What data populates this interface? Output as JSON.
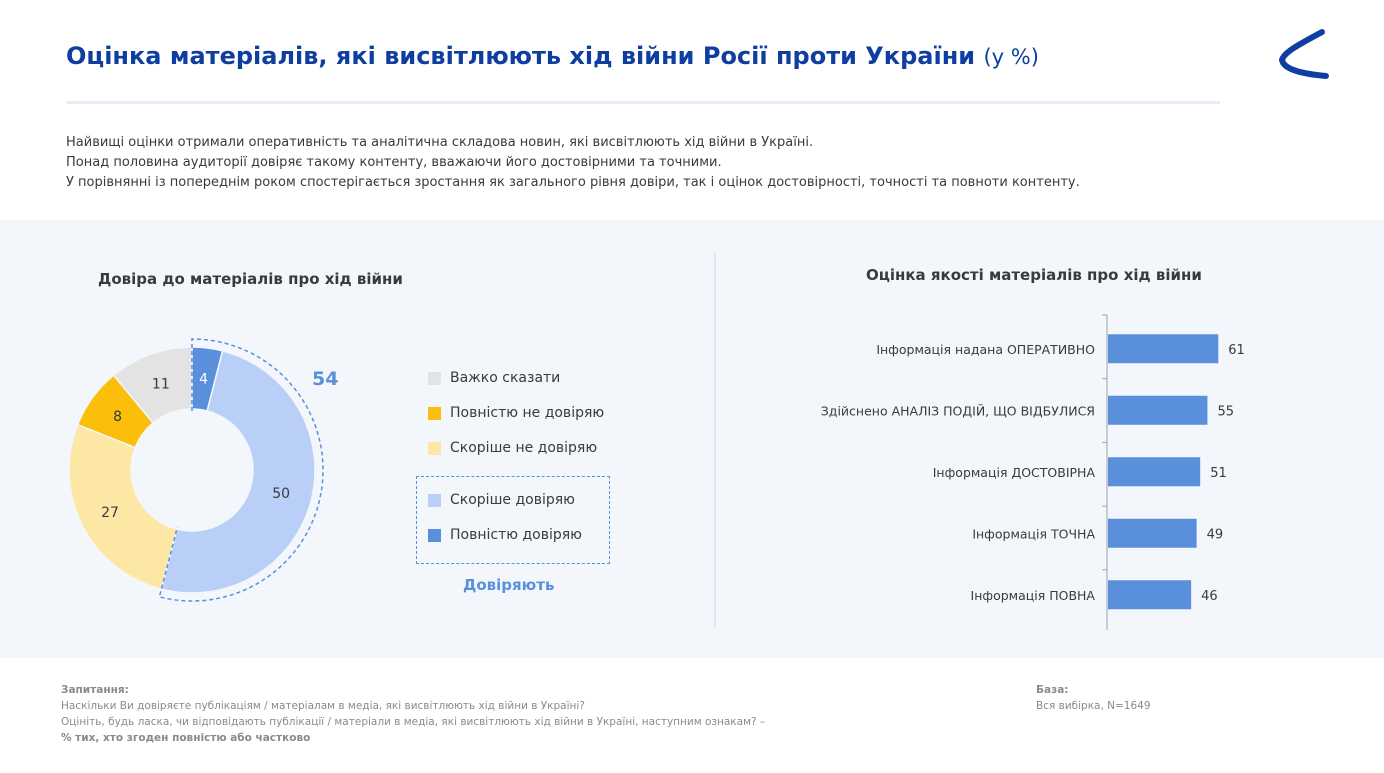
{
  "header": {
    "title": "Оцінка матеріалів, які висвітлюють хід війни Росії проти України",
    "unit": "(у %)"
  },
  "intro": [
    "Найвищі оцінки отримали оперативність та аналітична складова новин, які висвітлюють хід війни в Україні.",
    "Понад половина аудиторії довіряє такому контенту, вважаючи його достовірними та точними.",
    "У порівнянні із попереднім роком спостерігається зростання як загального рівня довіри, так і оцінок достовірності, точності та повноти контенту."
  ],
  "colors": {
    "title": "#0e3ea1",
    "accent": "#5a8fdc",
    "panel_bg": "#f3f7fb",
    "bar": "#5a8fdc"
  },
  "chart_data": [
    {
      "type": "pie",
      "title": "Довіра до матеріалів про хід війни",
      "categories": [
        "Повністю довіряю",
        "Скоріше довіряю",
        "Скоріше не довіряю",
        "Повністю не довіряю",
        "Важко сказати"
      ],
      "values": [
        4,
        50,
        27,
        8,
        11
      ],
      "colors": [
        "#5a8fdc",
        "#b9cff7",
        "#fde7a5",
        "#fbbf0b",
        "#e3e3e3"
      ],
      "legend": [
        {
          "label": "Важко сказати",
          "color": "#e3e3e3"
        },
        {
          "label": "Повністю не довіряю",
          "color": "#fbbf0b"
        },
        {
          "label": "Скоріше не довіряю",
          "color": "#fde7a5"
        },
        {
          "label": "Скоріше  довіряю",
          "color": "#b9cff7"
        },
        {
          "label": "Повністю довіряю",
          "color": "#5a8fdc"
        }
      ],
      "trust_group": {
        "label": "Довіряють",
        "value": "54"
      }
    },
    {
      "type": "bar",
      "orientation": "horizontal",
      "title": "Оцінка якості матеріалів про хід війни",
      "categories": [
        "Інформація надана ОПЕРАТИВНО",
        "Здійснено АНАЛІЗ ПОДІЙ, ЩО ВІДБУЛИСЯ",
        "Інформація ДОСТОВІРНА",
        "Інформація ТОЧНА",
        "Інформація ПОВНА"
      ],
      "values": [
        61,
        55,
        51,
        49,
        46
      ],
      "xlim": [
        0,
        100
      ]
    }
  ],
  "footer": {
    "question_heading": "Запитання:",
    "question_1": "Наскільки Ви довіряєте публікаціям / матеріалам в медіа, які висвітлюють хід війни в Україні?",
    "question_2": "Оцініть, будь ласка, чи відповідають публікації / матеріали в медіа, які висвітлюють хід війни в Україні, наступним ознакам? –",
    "question_note": "% тих, хто згоден повністю або частково",
    "base_heading": "База:",
    "base_text": "Вся вибірка, N=1649"
  }
}
